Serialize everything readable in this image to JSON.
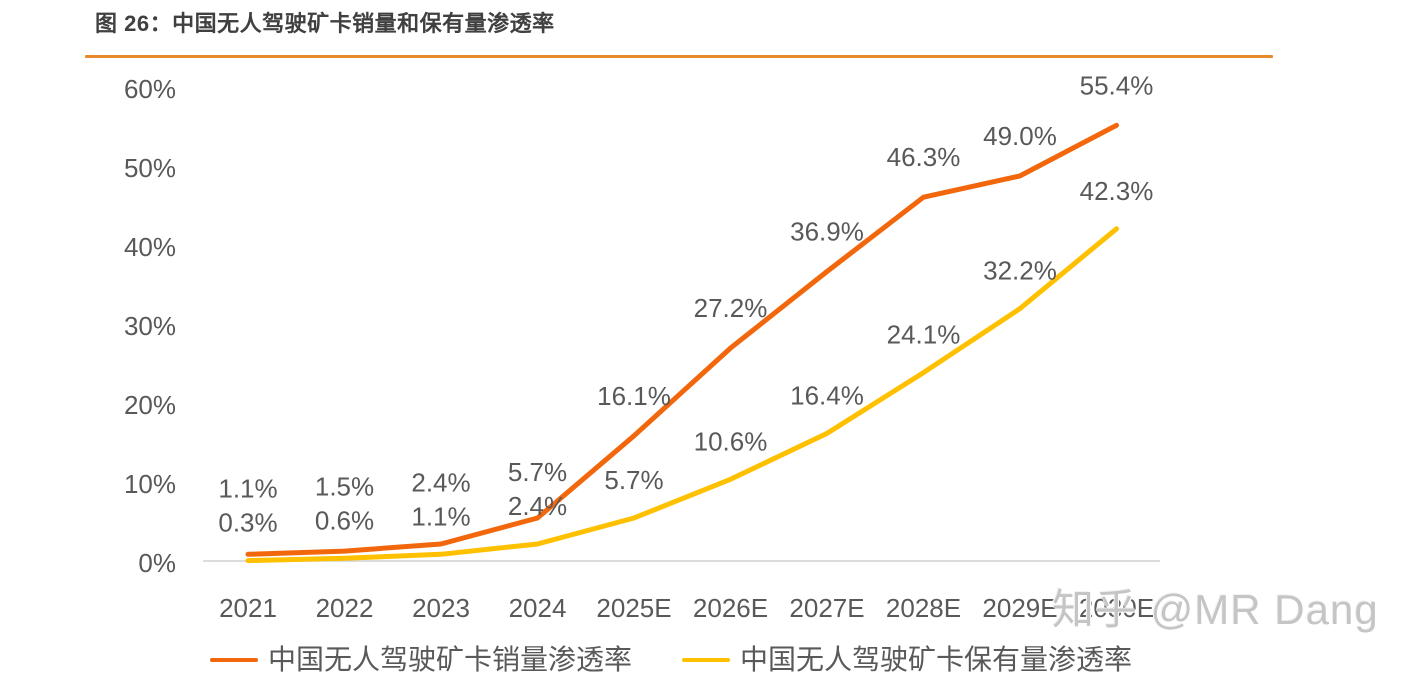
{
  "header": {
    "figure_label": "图 26：中国无人驾驶矿卡销量和保有量渗透率",
    "divider_color": "#E78A2B"
  },
  "watermark": {
    "text": "知乎 @MR Dang",
    "color": "#c5c5c5"
  },
  "chart_data": {
    "type": "line",
    "title": "图 26：中国无人驾驶矿卡销量和保有量渗透率",
    "categories": [
      "2021",
      "2022",
      "2023",
      "2024",
      "2025E",
      "2026E",
      "2027E",
      "2028E",
      "2029E",
      "2030E"
    ],
    "series": [
      {
        "name": "中国无人驾驶矿卡销量渗透率",
        "color": "#F2670C",
        "values": [
          1.1,
          1.5,
          2.4,
          5.7,
          16.1,
          27.2,
          36.9,
          46.3,
          49.0,
          55.4
        ]
      },
      {
        "name": "中国无人驾驶矿卡保有量渗透率",
        "color": "#FFC000",
        "values": [
          0.3,
          0.6,
          1.1,
          2.4,
          5.7,
          10.6,
          16.4,
          24.1,
          32.2,
          42.3
        ]
      }
    ],
    "y_ticks": [
      "0%",
      "10%",
      "20%",
      "30%",
      "40%",
      "50%",
      "60%"
    ],
    "ylim": [
      0,
      60
    ],
    "xlabel": "",
    "ylabel": "",
    "grid": false,
    "data_labels": true,
    "data_label_format": "one_decimal_percent",
    "legend_position": "bottom",
    "axis_line_color": "#D0D0D0",
    "label_color": "#595959"
  }
}
